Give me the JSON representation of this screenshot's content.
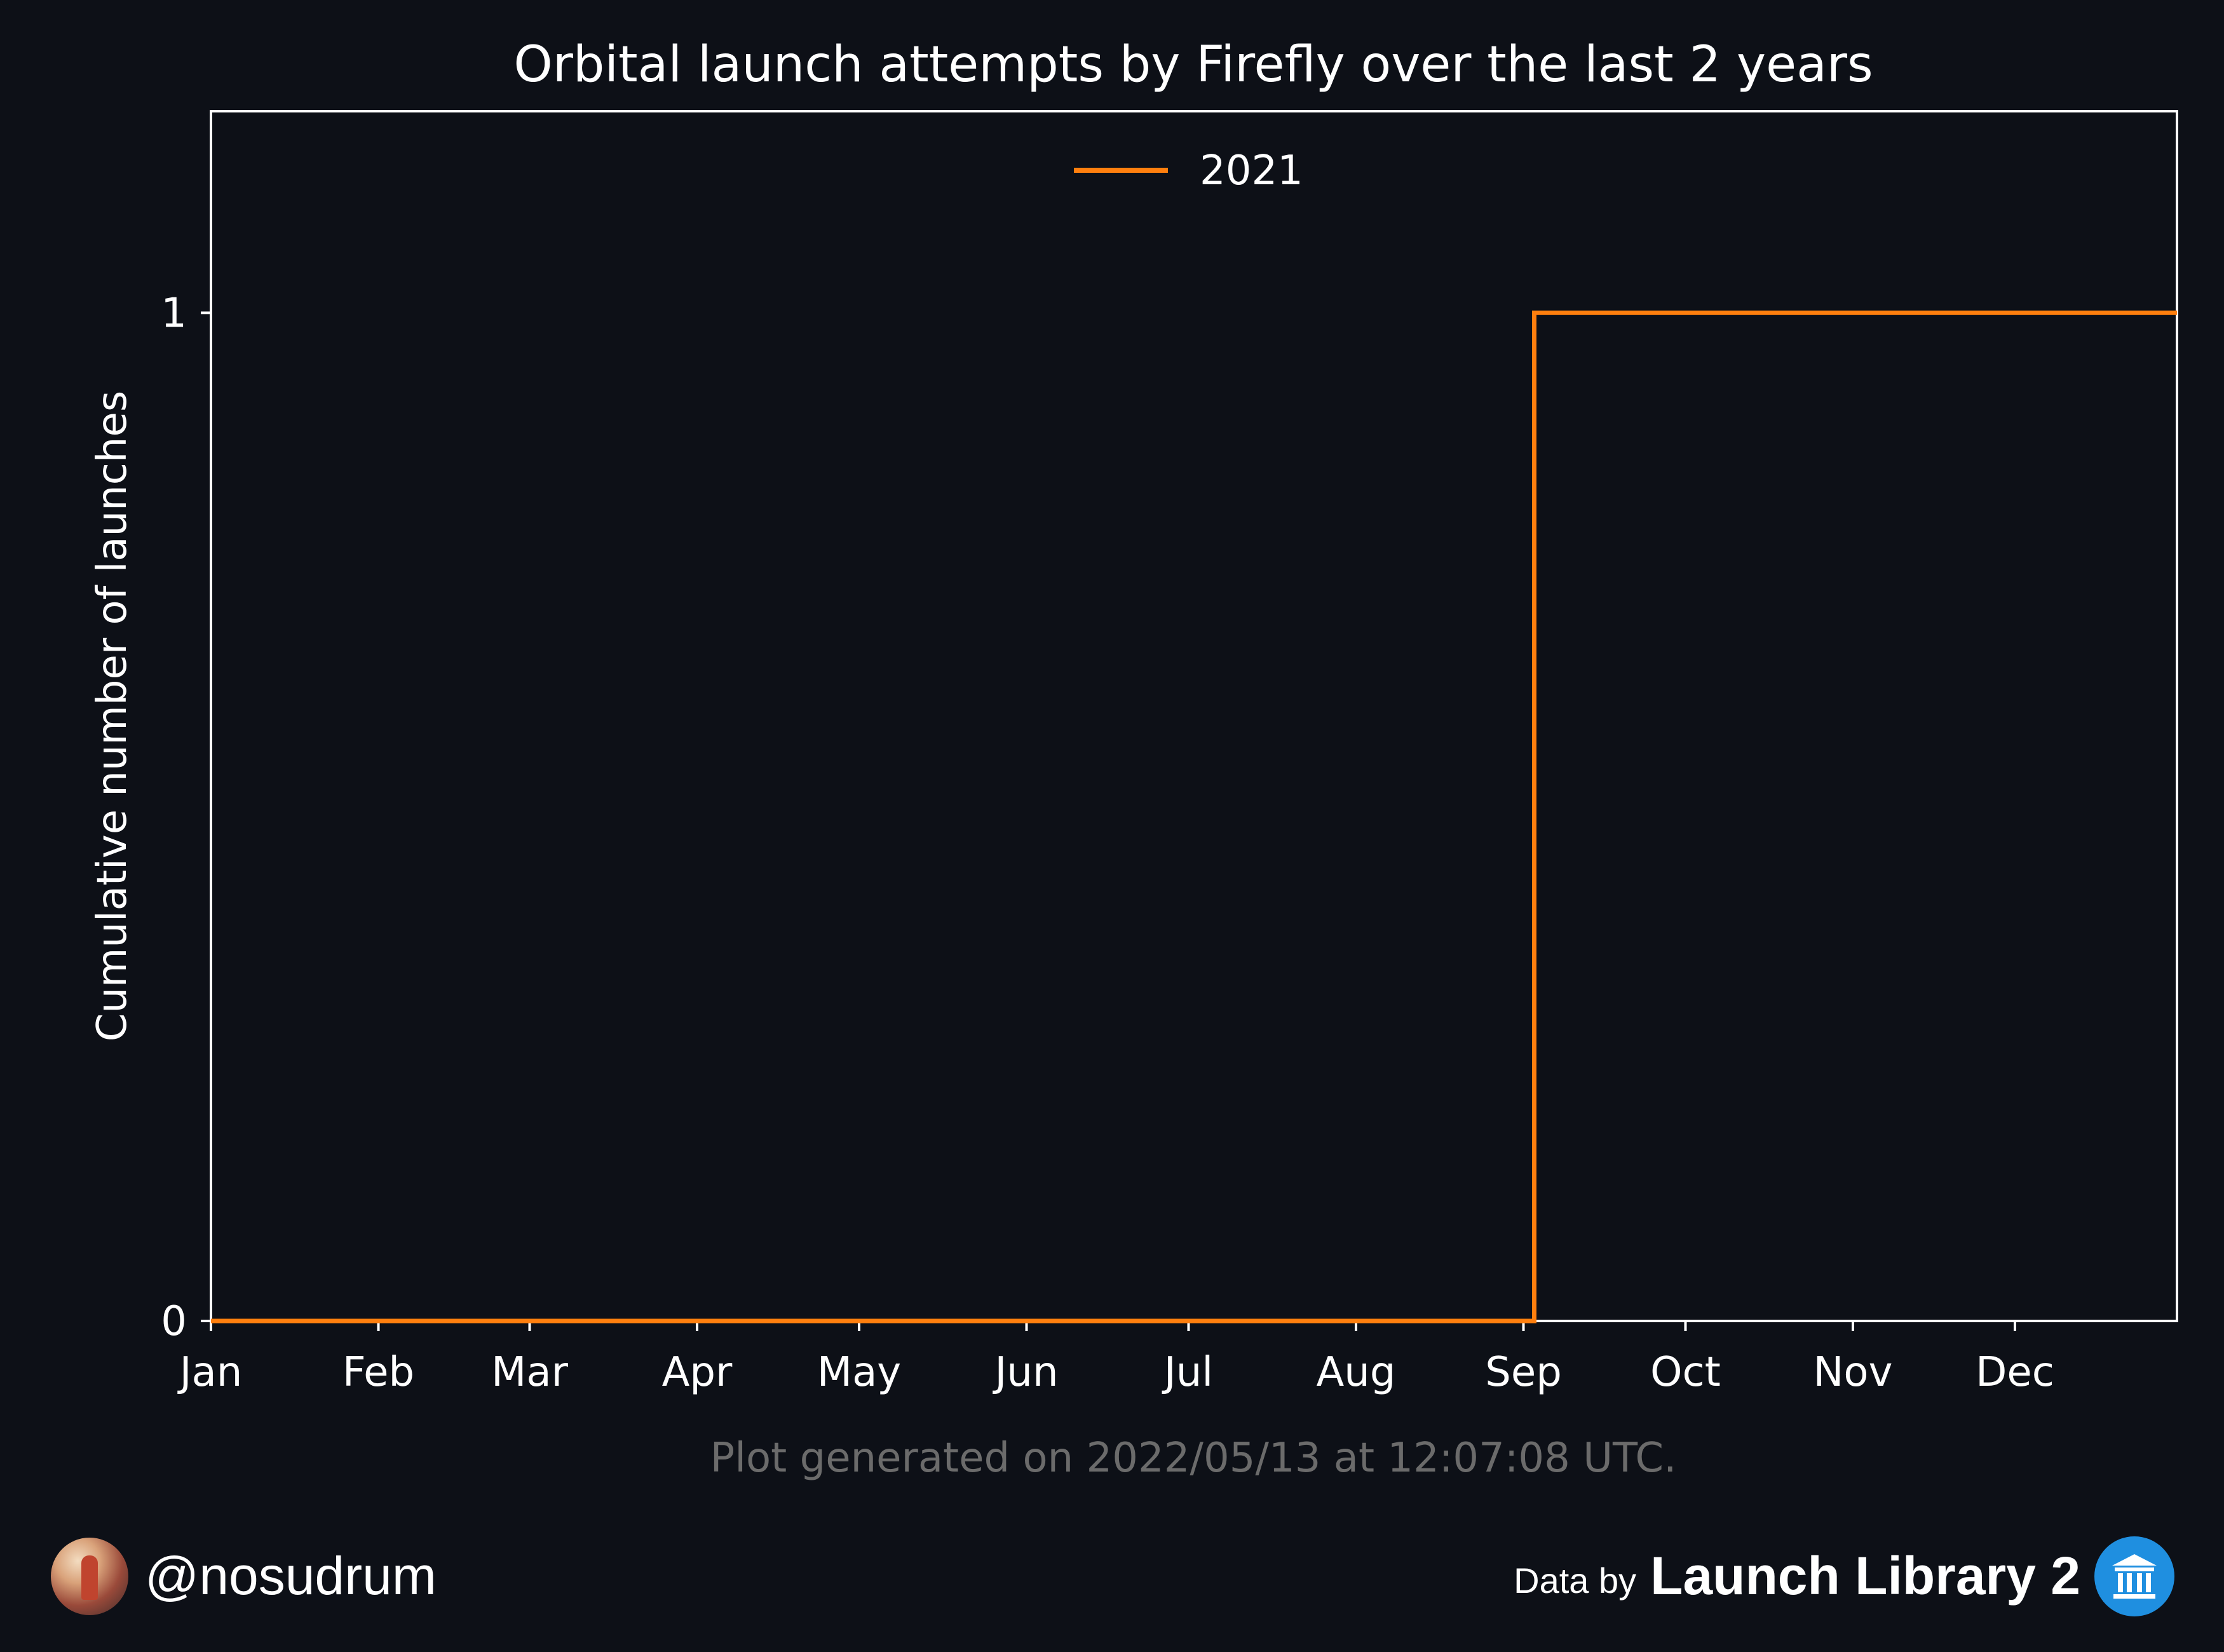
{
  "chart_data": {
    "type": "line",
    "title": "Orbital launch attempts by Firefly over the last 2 years",
    "xlabel": "",
    "ylabel": "Cumulative number of launches",
    "categories": [
      "Jan",
      "Feb",
      "Mar",
      "Apr",
      "May",
      "Jun",
      "Jul",
      "Aug",
      "Sep",
      "Oct",
      "Nov",
      "Dec"
    ],
    "xlim": [
      "2021-01-01",
      "2021-12-31"
    ],
    "ylim": [
      0,
      1.2
    ],
    "yticks": [
      0,
      1
    ],
    "grid": false,
    "legend_position": "top-center",
    "step": true,
    "series": [
      {
        "name": "2021",
        "color": "#ff7f0e",
        "x": [
          "2021-01-01",
          "2021-09-03",
          "2021-09-03",
          "2021-12-31"
        ],
        "y": [
          0,
          0,
          1,
          1
        ]
      }
    ]
  },
  "footnote": "Plot generated on 2022/05/13 at 12:07:08 UTC.",
  "footer": {
    "handle": "@nosudrum",
    "data_by": "Data by",
    "source": "Launch Library 2"
  },
  "colors": {
    "background": "#0d1017",
    "foreground": "#ffffff",
    "footnote": "#6b6b6b",
    "series": "#ff7f0e"
  }
}
